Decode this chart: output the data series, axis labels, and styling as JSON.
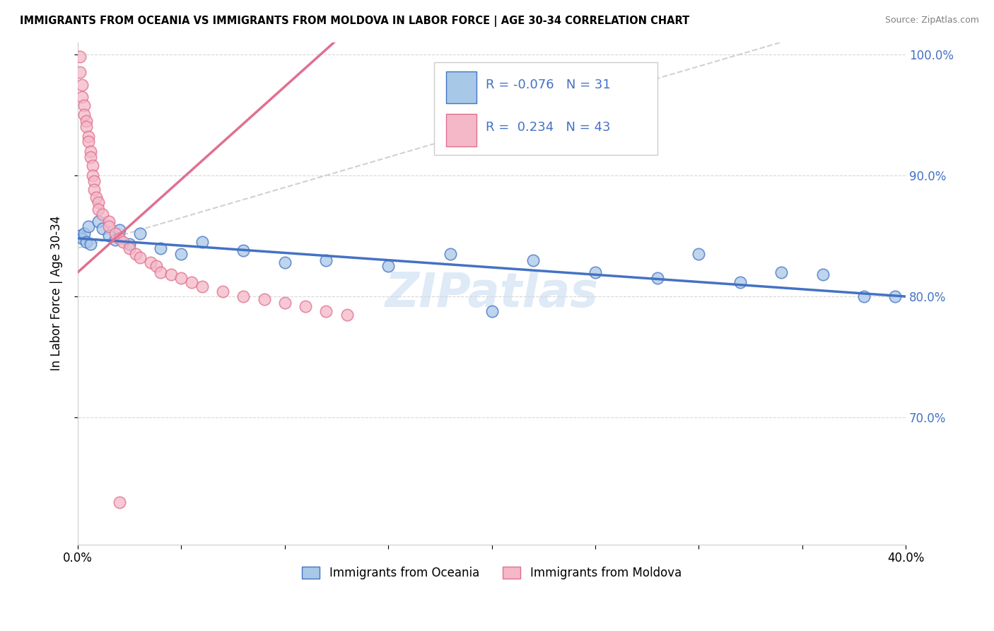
{
  "title": "IMMIGRANTS FROM OCEANIA VS IMMIGRANTS FROM MOLDOVA IN LABOR FORCE | AGE 30-34 CORRELATION CHART",
  "source": "Source: ZipAtlas.com",
  "ylabel": "In Labor Force | Age 30-34",
  "legend_label1": "Immigrants from Oceania",
  "legend_label2": "Immigrants from Moldova",
  "R1": -0.076,
  "N1": 31,
  "R2": 0.234,
  "N2": 43,
  "color1": "#A8C8E8",
  "color2": "#F4B8C8",
  "line_color1": "#4472C4",
  "line_color2": "#E07090",
  "xmin": 0.0,
  "xmax": 0.4,
  "ymin": 0.595,
  "ymax": 1.01,
  "oceania_x": [
    0.001,
    0.002,
    0.003,
    0.004,
    0.005,
    0.006,
    0.01,
    0.012,
    0.015,
    0.018,
    0.02,
    0.025,
    0.03,
    0.04,
    0.05,
    0.06,
    0.08,
    0.1,
    0.12,
    0.15,
    0.18,
    0.2,
    0.22,
    0.25,
    0.28,
    0.3,
    0.32,
    0.34,
    0.36,
    0.38,
    0.395
  ],
  "oceania_y": [
    0.85,
    0.848,
    0.852,
    0.845,
    0.858,
    0.843,
    0.862,
    0.856,
    0.85,
    0.847,
    0.855,
    0.843,
    0.852,
    0.84,
    0.835,
    0.845,
    0.838,
    0.828,
    0.83,
    0.825,
    0.835,
    0.788,
    0.83,
    0.82,
    0.815,
    0.835,
    0.812,
    0.82,
    0.818,
    0.8,
    0.8
  ],
  "moldova_x": [
    0.001,
    0.001,
    0.002,
    0.002,
    0.003,
    0.003,
    0.004,
    0.004,
    0.005,
    0.005,
    0.006,
    0.006,
    0.007,
    0.007,
    0.008,
    0.008,
    0.009,
    0.01,
    0.01,
    0.012,
    0.015,
    0.015,
    0.018,
    0.02,
    0.022,
    0.025,
    0.028,
    0.03,
    0.035,
    0.038,
    0.04,
    0.045,
    0.05,
    0.055,
    0.06,
    0.07,
    0.08,
    0.09,
    0.1,
    0.11,
    0.12,
    0.13,
    0.02
  ],
  "moldova_y": [
    0.998,
    0.985,
    0.975,
    0.965,
    0.958,
    0.95,
    0.945,
    0.94,
    0.932,
    0.928,
    0.92,
    0.915,
    0.908,
    0.9,
    0.895,
    0.888,
    0.882,
    0.878,
    0.872,
    0.868,
    0.862,
    0.858,
    0.852,
    0.848,
    0.845,
    0.84,
    0.835,
    0.832,
    0.828,
    0.825,
    0.82,
    0.818,
    0.815,
    0.812,
    0.808,
    0.804,
    0.8,
    0.798,
    0.795,
    0.792,
    0.788,
    0.785,
    0.63
  ],
  "yticks": [
    0.7,
    0.8,
    0.9,
    1.0
  ],
  "ytick_labels": [
    "70.0%",
    "80.0%",
    "90.0%",
    "100.0%"
  ],
  "xtick_left_label": "0.0%",
  "xtick_right_label": "40.0%",
  "watermark": "ZIPatlas",
  "watermark_color": "#C8DCF0",
  "grid_color": "#CCCCCC",
  "dash_line_color": "#CCCCCC"
}
